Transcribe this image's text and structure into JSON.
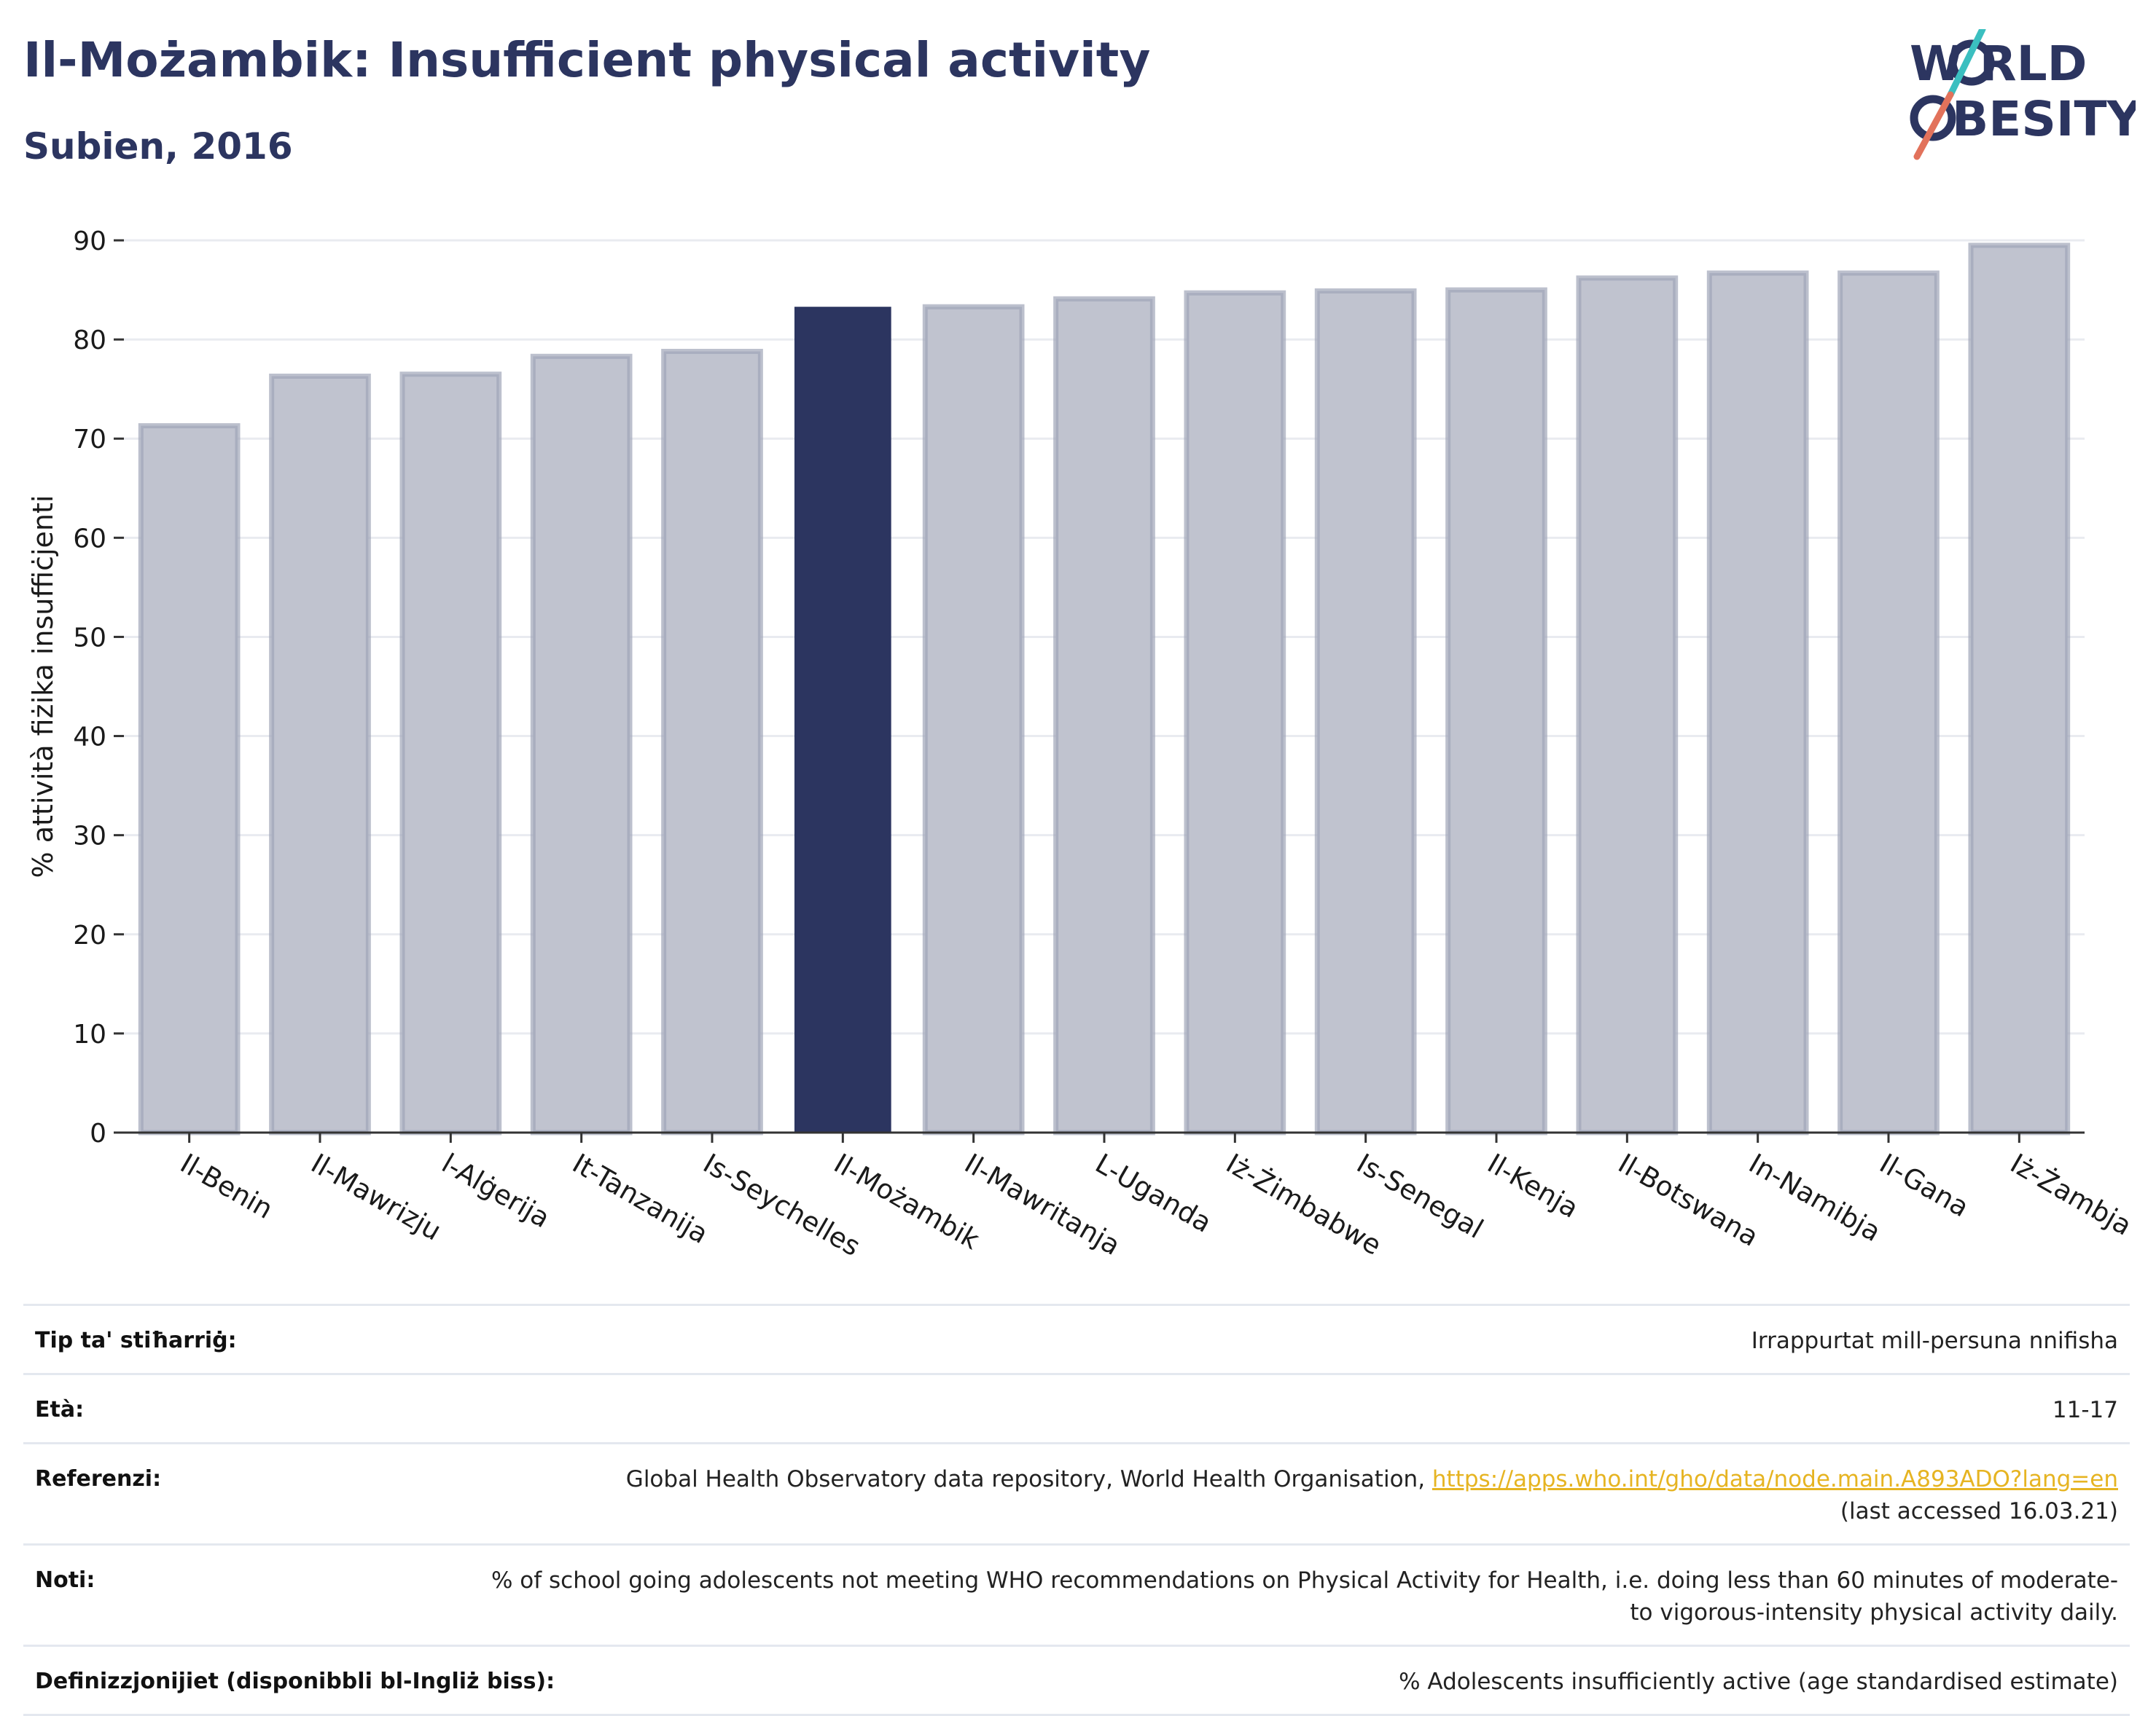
{
  "header": {
    "title": "Il-Możambik: Insufficient physical activity",
    "subtitle": "Subien, 2016"
  },
  "logo": {
    "line1": "W RLD",
    "line2": "BESITY",
    "text": "WORLD OBESITY",
    "colors": {
      "text": "#2c3560",
      "slash_top": "#3bbfc0",
      "slash_bottom": "#e2725b"
    }
  },
  "chart_data": {
    "type": "bar",
    "title": "",
    "xlabel": "",
    "ylabel": "% attività fiżika insuffiċjenti",
    "ylim": [
      0,
      90
    ],
    "yticks": [
      0,
      10,
      20,
      30,
      40,
      50,
      60,
      70,
      80,
      90
    ],
    "grid": true,
    "categories": [
      "Il-Benin",
      "Il-Mawrizju",
      "l-Alġerija",
      "It-Tanzanija",
      "Is-Seychelles",
      "Il-Możambik",
      "Il-Mawritanja",
      "L-Uganda",
      "Iż-Żimbabwe",
      "Is-Senegal",
      "Il-Kenja",
      "Il-Botswana",
      "In-Namibja",
      "Il-Gana",
      "Iż-Żambja"
    ],
    "values": [
      71.3,
      76.3,
      76.5,
      78.3,
      78.8,
      83.3,
      83.3,
      84.1,
      84.7,
      84.9,
      85.0,
      86.2,
      86.7,
      86.7,
      89.5
    ],
    "highlight_index": 5,
    "colors": {
      "bar": "#c0c3cf",
      "bar_edge": "#a0a5b8",
      "highlight": "#2c3560",
      "grid": "#e9ebf0",
      "axis": "#333333"
    }
  },
  "meta": {
    "source_type_label": "Tip ta' stiħarriġ:",
    "source_type_value": "Irrappurtat mill-persuna nnifisha",
    "age_label": "Età:",
    "age_value": "11-17",
    "references_label": "Referenzi:",
    "references_text": "Global Health Observatory data repository, World Health Organisation, ",
    "references_link": "https://apps.who.int/gho/data/node.main.A893ADO?lang=en",
    "references_accessed": "(last accessed 16.03.21)",
    "notes_label": "Noti:",
    "notes_value": "% of school going adolescents not meeting WHO recommendations on Physical Activity for Health, i.e. doing less than 60 minutes of moderate- to vigorous-intensity physical activity daily.",
    "definitions_label": "Definizzjonijiet (disponibbli bl-Ingliż biss):",
    "definitions_value": "% Adolescents insufficiently active (age standardised estimate)"
  }
}
